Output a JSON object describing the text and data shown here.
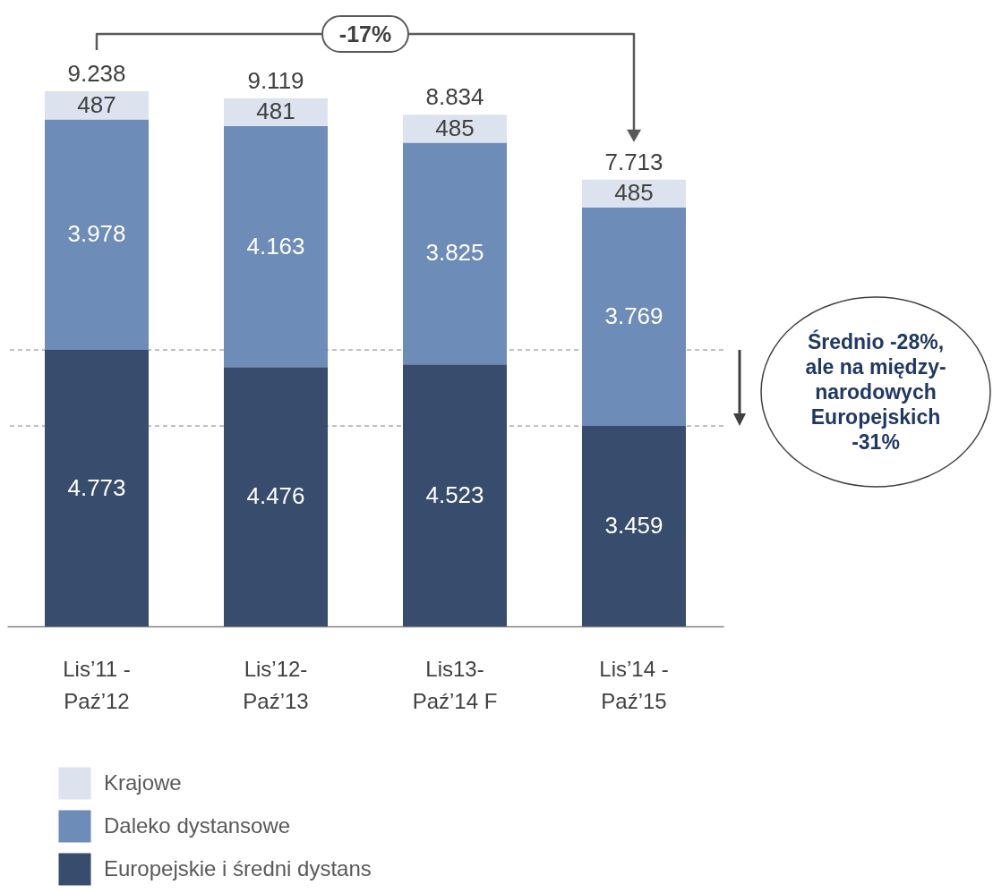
{
  "chart_data": {
    "type": "bar",
    "stacked": true,
    "categories": [
      "Lis’11 -\nPaź’12",
      "Lis’12-\nPaź’13",
      "Lis13-\nPaź’14 F",
      "Lis’14 -\nPaź’15"
    ],
    "series": [
      {
        "name": "Europejskie i średni dystans",
        "color": "#384d6d",
        "values": [
          4773,
          4476,
          4523,
          3459
        ],
        "value_labels": [
          "4.773",
          "4.476",
          "4.523",
          "3.459"
        ]
      },
      {
        "name": "Daleko dystansowe",
        "color": "#6d8cb8",
        "values": [
          3978,
          4163,
          3825,
          3769
        ],
        "value_labels": [
          "3.978",
          "4.163",
          "3.825",
          "3.769"
        ]
      },
      {
        "name": "Krajowe",
        "color": "#dde3ee",
        "values": [
          487,
          481,
          485,
          485
        ],
        "value_labels": [
          "487",
          "481",
          "485",
          "485"
        ]
      }
    ],
    "totals": [
      "9.238",
      "9.119",
      "8.834",
      "7.713"
    ],
    "ref_lines": [
      {
        "axis": "y",
        "value": 4773,
        "line_style": "dashed",
        "color": "#808080"
      },
      {
        "axis": "y",
        "value": 3459,
        "line_style": "dashed",
        "color": "#808080"
      }
    ],
    "annotations": [
      "-17%",
      "Średnio -28%,\nale na między-\nnarodowych\nEuropejskich\n-31%"
    ],
    "legend": "bottom left",
    "grid": false
  }
}
